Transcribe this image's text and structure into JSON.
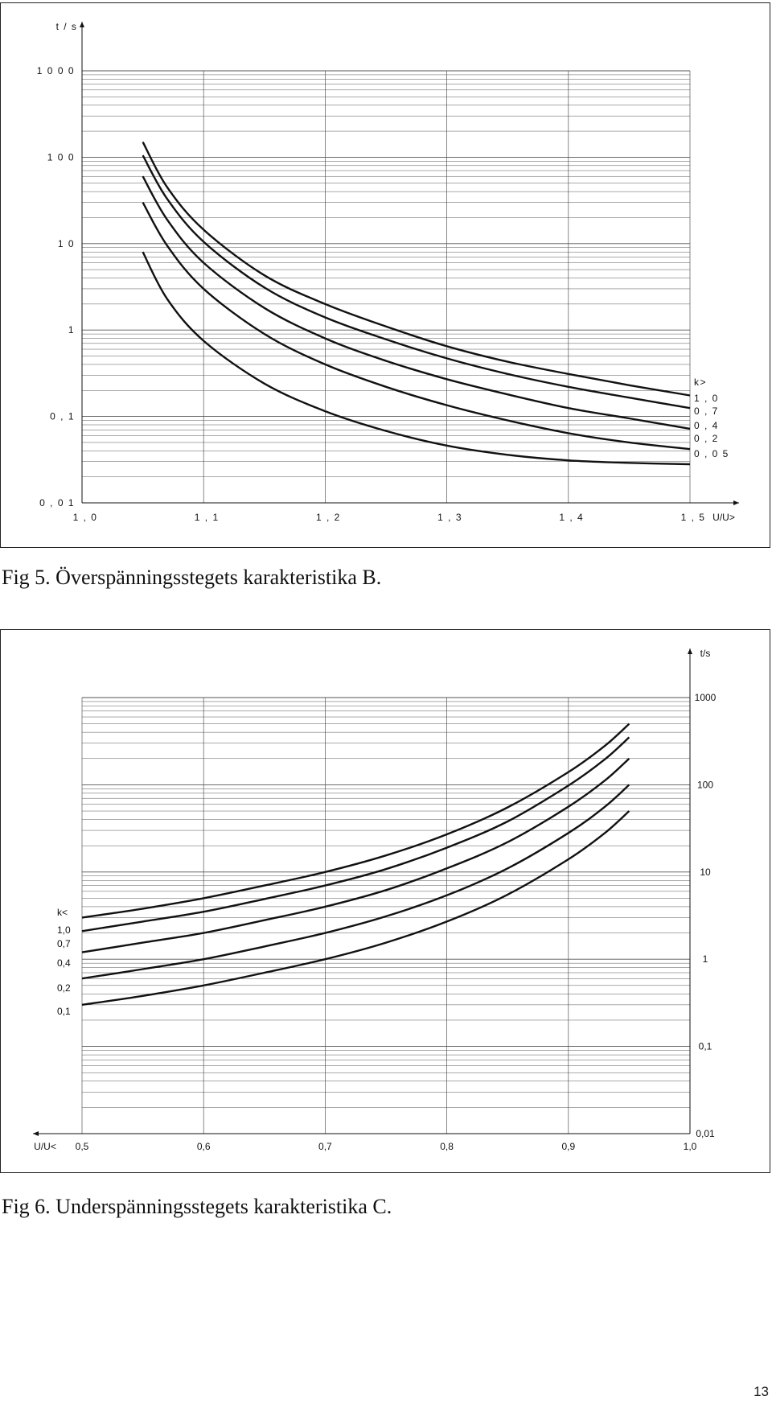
{
  "figures": [
    {
      "caption": "Fig 5. Överspänningsstegets karakteristika B.",
      "chart_data": {
        "type": "line",
        "title": "",
        "xlabel": "U/U>",
        "ylabel": "t / s",
        "xlim": [
          1.0,
          1.5
        ],
        "ylim": [
          0.01,
          1000
        ],
        "y_scale": "log",
        "grid": true,
        "x_ticks": [
          "1 , 0",
          "1 , 1",
          "1 , 2",
          "1 , 3",
          "1 , 4",
          "1 , 5"
        ],
        "y_ticks": [
          "0 , 0 1",
          "0 , 1",
          "1",
          "1 0",
          "1 0 0",
          "1 0 0 0"
        ],
        "legend_title": "k>",
        "legend_position": "right",
        "series": [
          {
            "name": "1 , 0",
            "x": [
              1.05,
              1.07,
              1.1,
              1.15,
              1.2,
              1.25,
              1.3,
              1.35,
              1.4,
              1.45,
              1.5
            ],
            "y": [
              150,
              45,
              14.5,
              4.3,
              2.0,
              1.1,
              0.65,
              0.43,
              0.31,
              0.23,
              0.175
            ]
          },
          {
            "name": "0 , 7",
            "x": [
              1.05,
              1.07,
              1.1,
              1.15,
              1.2,
              1.25,
              1.3,
              1.35,
              1.4,
              1.45,
              1.5
            ],
            "y": [
              105,
              33,
              10.5,
              3.1,
              1.4,
              0.78,
              0.47,
              0.31,
              0.22,
              0.165,
              0.125
            ]
          },
          {
            "name": "0 , 4",
            "x": [
              1.05,
              1.07,
              1.1,
              1.15,
              1.2,
              1.25,
              1.3,
              1.35,
              1.4,
              1.45,
              1.5
            ],
            "y": [
              60,
              19,
              6.0,
              1.8,
              0.8,
              0.44,
              0.27,
              0.18,
              0.125,
              0.095,
              0.072
            ]
          },
          {
            "name": "0 , 2",
            "x": [
              1.05,
              1.07,
              1.1,
              1.15,
              1.2,
              1.25,
              1.3,
              1.35,
              1.4,
              1.45,
              1.5
            ],
            "y": [
              30,
              9.5,
              3.0,
              0.9,
              0.4,
              0.22,
              0.135,
              0.09,
              0.064,
              0.05,
              0.042
            ]
          },
          {
            "name": "0 , 0 5",
            "x": [
              1.05,
              1.07,
              1.1,
              1.15,
              1.2,
              1.25,
              1.3,
              1.35,
              1.4,
              1.45,
              1.5
            ],
            "y": [
              8.0,
              2.3,
              0.75,
              0.24,
              0.115,
              0.068,
              0.046,
              0.036,
              0.031,
              0.029,
              0.028
            ]
          }
        ]
      }
    },
    {
      "caption": "Fig 6. Underspänningsstegets karakteristika C.",
      "chart_data": {
        "type": "line",
        "title": "",
        "xlabel": "U/U<",
        "ylabel": "t/s",
        "xlim": [
          0.5,
          1.0
        ],
        "x_reversed": false,
        "ylim": [
          0.01,
          1000
        ],
        "y_scale": "log",
        "y_axis_side": "right",
        "grid": true,
        "x_ticks": [
          "0,5",
          "0,6",
          "0,7",
          "0,8",
          "0,9",
          "1,0"
        ],
        "y_ticks": [
          "0,01",
          "0,1",
          "1",
          "10",
          "100",
          "1000"
        ],
        "legend_title": "k<",
        "legend_position": "left",
        "series": [
          {
            "name": "1,0",
            "x": [
              0.5,
              0.55,
              0.6,
              0.65,
              0.7,
              0.75,
              0.8,
              0.85,
              0.9,
              0.93,
              0.95
            ],
            "y": [
              3.0,
              3.8,
              5.0,
              7.0,
              10.0,
              15.5,
              27,
              55,
              140,
              280,
              500
            ]
          },
          {
            "name": "0,7",
            "x": [
              0.5,
              0.55,
              0.6,
              0.65,
              0.7,
              0.75,
              0.8,
              0.85,
              0.9,
              0.93,
              0.95
            ],
            "y": [
              2.1,
              2.7,
              3.5,
              4.9,
              7.0,
              10.8,
              19,
              38,
              98,
              196,
              350
            ]
          },
          {
            "name": "0,4",
            "x": [
              0.5,
              0.55,
              0.6,
              0.65,
              0.7,
              0.75,
              0.8,
              0.85,
              0.9,
              0.93,
              0.95
            ],
            "y": [
              1.2,
              1.55,
              2.0,
              2.8,
              4.0,
              6.2,
              11,
              22,
              56,
              112,
              200
            ]
          },
          {
            "name": "0,2",
            "x": [
              0.5,
              0.55,
              0.6,
              0.65,
              0.7,
              0.75,
              0.8,
              0.85,
              0.9,
              0.93,
              0.95
            ],
            "y": [
              0.6,
              0.77,
              1.0,
              1.4,
              2.0,
              3.1,
              5.4,
              11,
              28,
              56,
              100
            ]
          },
          {
            "name": "0,1",
            "x": [
              0.5,
              0.55,
              0.6,
              0.65,
              0.7,
              0.75,
              0.8,
              0.85,
              0.9,
              0.93,
              0.95
            ],
            "y": [
              0.3,
              0.38,
              0.5,
              0.7,
              1.0,
              1.55,
              2.7,
              5.5,
              14,
              28,
              50
            ]
          }
        ]
      }
    }
  ],
  "page_number": "13"
}
